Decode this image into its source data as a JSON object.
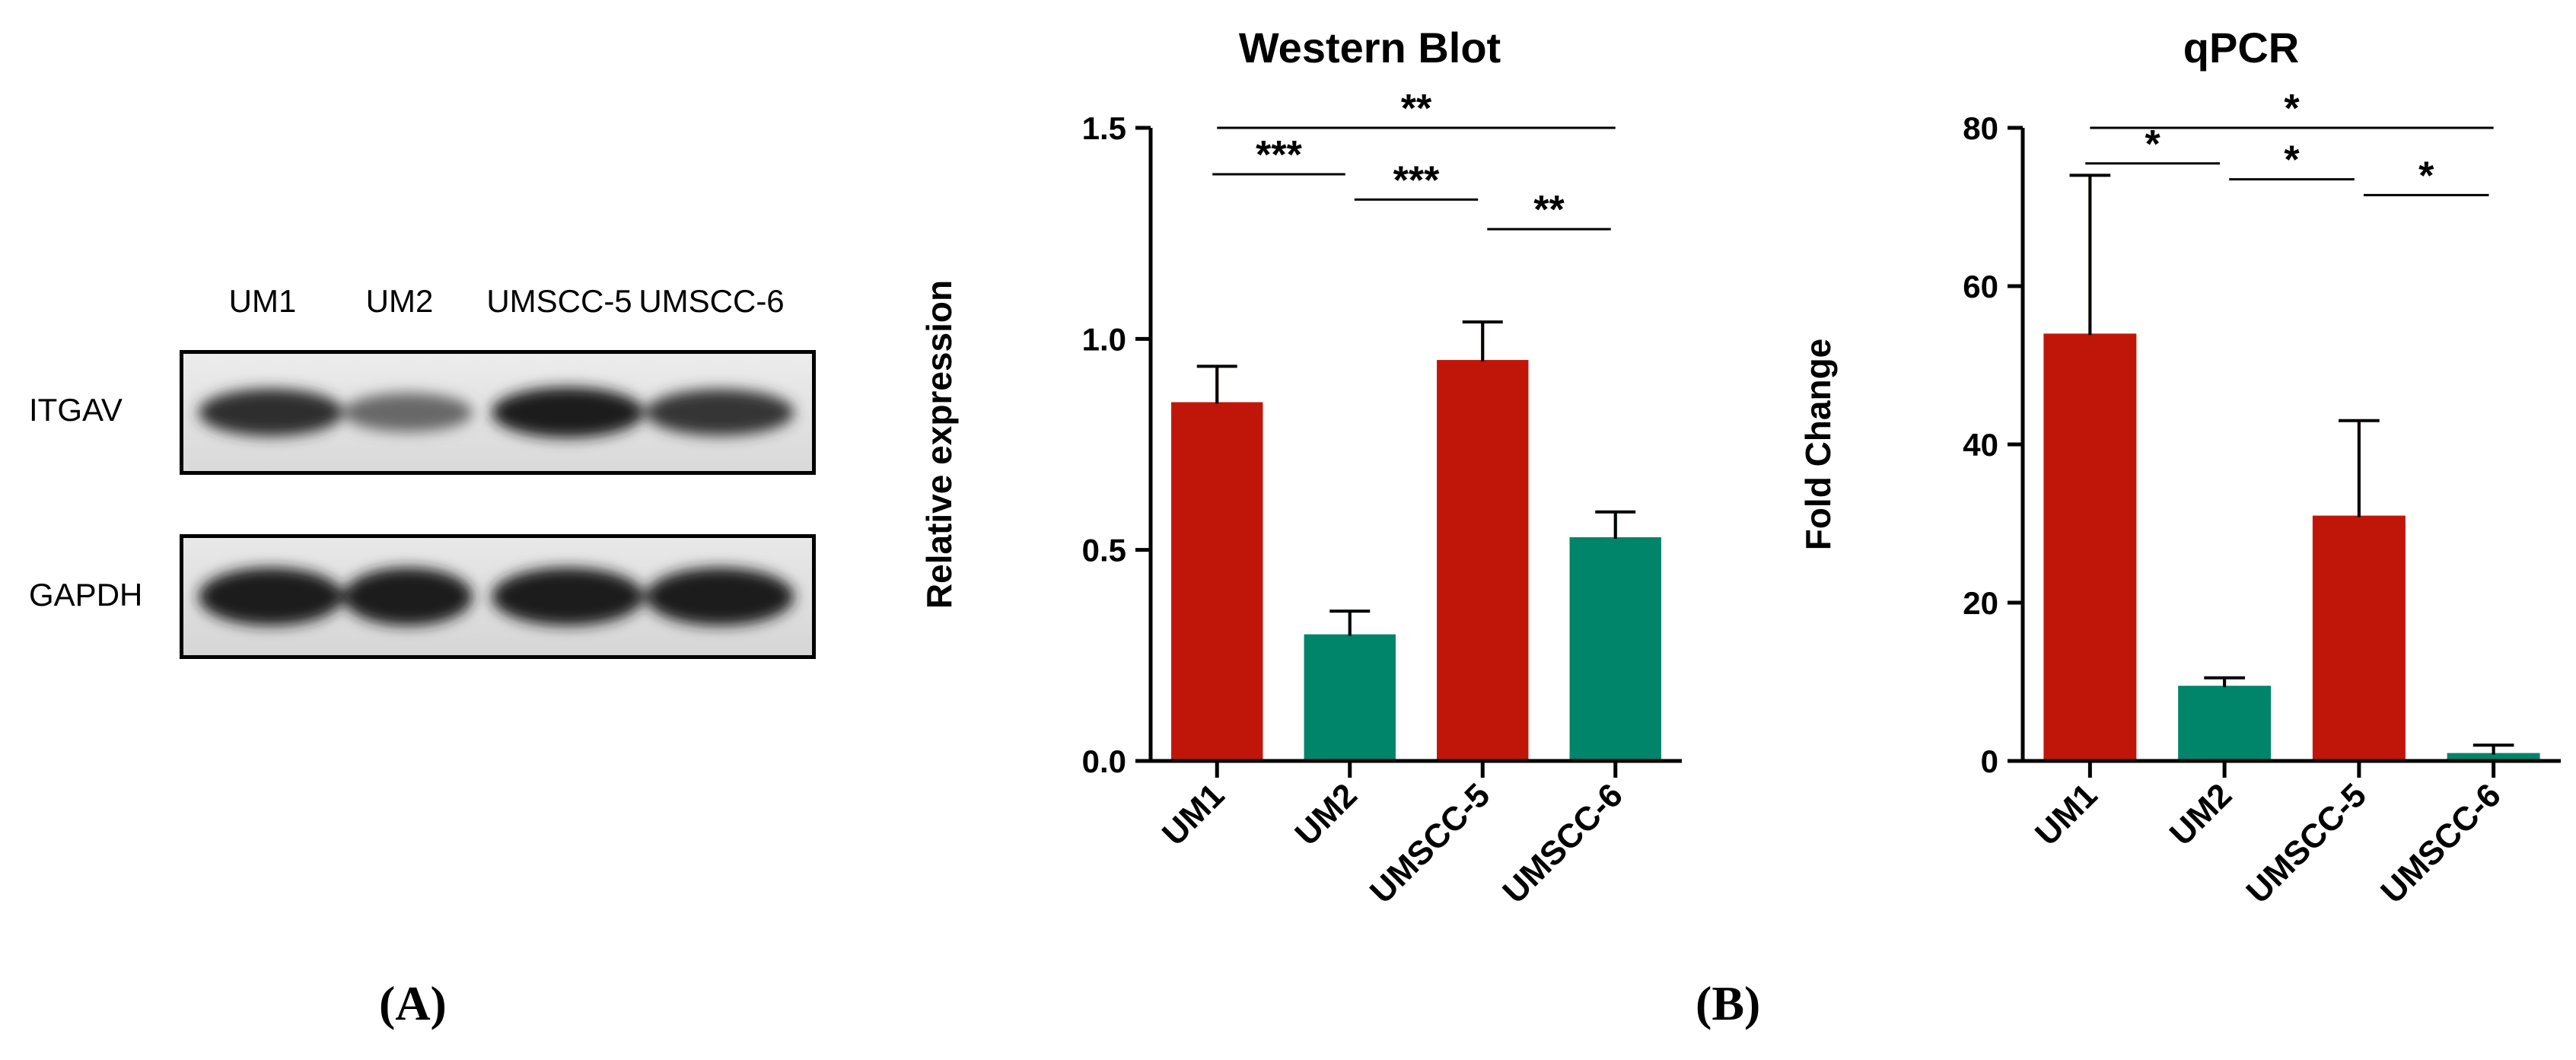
{
  "panel_labels": {
    "a": "(A)",
    "b": "(B)"
  },
  "blot": {
    "lanes": [
      "UM1",
      "UM2",
      "UMSCC-5",
      "UMSCC-6"
    ],
    "rows": [
      {
        "label": "ITGAV",
        "band_intensity": [
          0.82,
          0.45,
          0.95,
          0.78
        ]
      },
      {
        "label": "GAPDH",
        "band_intensity": [
          0.95,
          0.95,
          0.95,
          0.95
        ]
      }
    ]
  },
  "colors": {
    "red": "#C0160A",
    "teal": "#00856A",
    "axis": "#000000"
  },
  "chart_data": [
    {
      "type": "bar",
      "title": "Western Blot",
      "xlabel": "",
      "ylabel": "Relative expression",
      "categories": [
        "UM1",
        "UM2",
        "UMSCC-5",
        "UMSCC-6"
      ],
      "values": [
        0.85,
        0.3,
        0.95,
        0.53
      ],
      "errors": [
        0.085,
        0.055,
        0.09,
        0.06
      ],
      "bar_colors": [
        "red",
        "teal",
        "red",
        "teal"
      ],
      "ylim": [
        0,
        1.5
      ],
      "yticks": [
        0.0,
        0.5,
        1.0,
        1.5
      ],
      "ytick_labels": [
        "0.0",
        "0.5",
        "1.0",
        "1.5"
      ],
      "significance": [
        {
          "from": 0,
          "to": 3,
          "label": "**",
          "y": 1.5
        },
        {
          "from": 0,
          "to": 1,
          "label": "***",
          "y": 1.39
        },
        {
          "from": 1,
          "to": 2,
          "label": "***",
          "y": 1.33
        },
        {
          "from": 2,
          "to": 3,
          "label": "**",
          "y": 1.26
        }
      ]
    },
    {
      "type": "bar",
      "title": "qPCR",
      "xlabel": "",
      "ylabel": "Fold Change",
      "categories": [
        "UM1",
        "UM2",
        "UMSCC-5",
        "UMSCC-6"
      ],
      "values": [
        54,
        9.5,
        31,
        1
      ],
      "errors": [
        20,
        1,
        12,
        1
      ],
      "bar_colors": [
        "red",
        "teal",
        "red",
        "teal"
      ],
      "ylim": [
        0,
        80
      ],
      "yticks": [
        0,
        20,
        40,
        60,
        80
      ],
      "ytick_labels": [
        "0",
        "20",
        "40",
        "60",
        "80"
      ],
      "significance": [
        {
          "from": 0,
          "to": 3,
          "label": "*",
          "y": 80
        },
        {
          "from": 0,
          "to": 1,
          "label": "*",
          "y": 75.5
        },
        {
          "from": 1,
          "to": 2,
          "label": "*",
          "y": 73.5
        },
        {
          "from": 2,
          "to": 3,
          "label": "*",
          "y": 71.5
        }
      ]
    }
  ]
}
